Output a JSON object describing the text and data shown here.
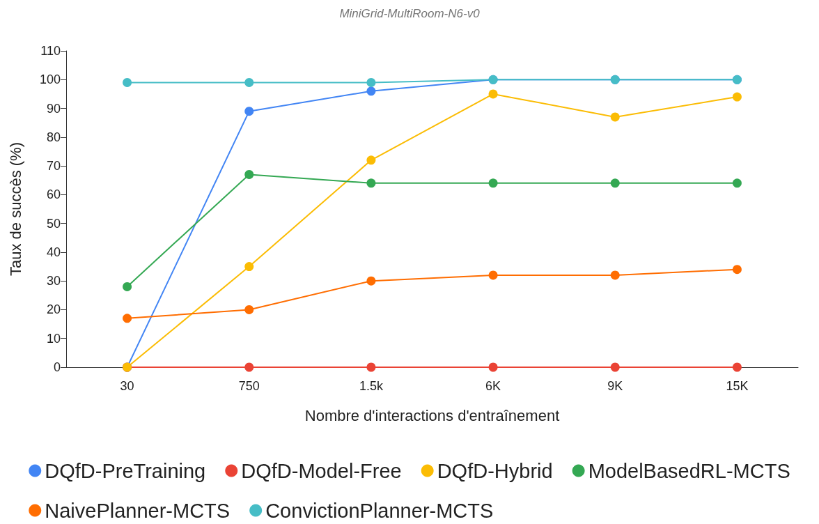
{
  "chart_data": {
    "type": "line",
    "title": "MiniGrid-MultiRoom-N6-v0",
    "xlabel": "Nombre d'interactions d'entraînement",
    "ylabel": "Taux de succès (%)",
    "categories": [
      "30",
      "750",
      "1.5k",
      "6K",
      "9K",
      "15K"
    ],
    "series": [
      {
        "name": "DQfD-PreTraining",
        "color": "#4285f4",
        "values": [
          0,
          89,
          96,
          100,
          100,
          100
        ]
      },
      {
        "name": "DQfD-Model-Free",
        "color": "#ea4335",
        "values": [
          0,
          0,
          0,
          0,
          0,
          0
        ]
      },
      {
        "name": "DQfD-Hybrid",
        "color": "#fbbc04",
        "values": [
          0,
          35,
          72,
          95,
          87,
          94
        ]
      },
      {
        "name": "ModelBasedRL-MCTS",
        "color": "#34a853",
        "values": [
          28,
          67,
          64,
          64,
          64,
          64
        ]
      },
      {
        "name": "NaivePlanner-MCTS",
        "color": "#ff6d01",
        "values": [
          17,
          20,
          30,
          32,
          32,
          34
        ]
      },
      {
        "name": "ConvictionPlanner-MCTS",
        "color": "#46bdc6",
        "values": [
          99,
          99,
          99,
          100,
          100,
          100
        ]
      }
    ],
    "ylim": [
      0,
      110
    ],
    "yticks": [
      0,
      10,
      20,
      30,
      40,
      50,
      60,
      70,
      80,
      90,
      100,
      110
    ],
    "grid": false,
    "legend": "bottom",
    "marker": "circle",
    "line_style": "solid"
  }
}
